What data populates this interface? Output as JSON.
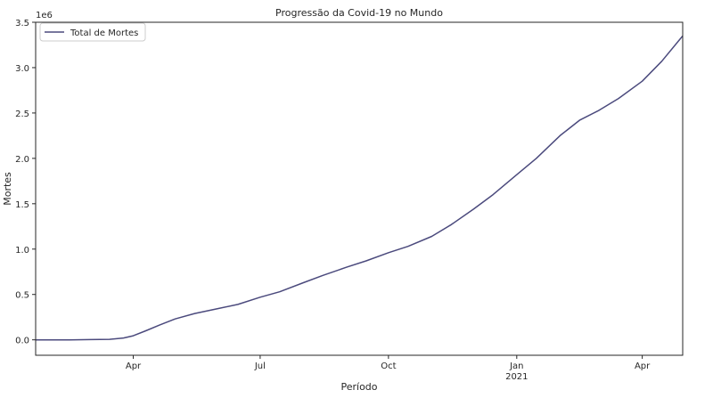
{
  "chart_data": {
    "type": "line",
    "title": "Progressão da Covid-19 no Mundo",
    "xlabel": "Período",
    "ylabel": "Mortes",
    "y_offset_label": "1e6",
    "ylim": [
      -0.17,
      3.5
    ],
    "xlim": [
      "2020-01-22",
      "2021-04-30"
    ],
    "yticks": [
      {
        "value": 0.0,
        "label": "0.0"
      },
      {
        "value": 0.5,
        "label": "0.5"
      },
      {
        "value": 1.0,
        "label": "1.0"
      },
      {
        "value": 1.5,
        "label": "1.5"
      },
      {
        "value": 2.0,
        "label": "2.0"
      },
      {
        "value": 2.5,
        "label": "2.5"
      },
      {
        "value": 3.0,
        "label": "3.0"
      },
      {
        "value": 3.5,
        "label": "3.5"
      }
    ],
    "xticks": [
      {
        "date": "2020-04-01",
        "label": "Apr",
        "sublabel": ""
      },
      {
        "date": "2020-07-01",
        "label": "Jul",
        "sublabel": ""
      },
      {
        "date": "2020-10-01",
        "label": "Oct",
        "sublabel": ""
      },
      {
        "date": "2021-01-01",
        "label": "Jan",
        "sublabel": "2021"
      },
      {
        "date": "2021-04-01",
        "label": "Apr",
        "sublabel": ""
      }
    ],
    "legend_position": "top-left",
    "grid": false,
    "series": [
      {
        "name": "Total de Mortes",
        "color": "#4b4a7d",
        "points": [
          {
            "x": "2020-01-22",
            "y": 0.0
          },
          {
            "x": "2020-02-15",
            "y": 0.0
          },
          {
            "x": "2020-03-01",
            "y": 0.003
          },
          {
            "x": "2020-03-15",
            "y": 0.006
          },
          {
            "x": "2020-03-25",
            "y": 0.02
          },
          {
            "x": "2020-04-01",
            "y": 0.045
          },
          {
            "x": "2020-04-10",
            "y": 0.1
          },
          {
            "x": "2020-04-20",
            "y": 0.165
          },
          {
            "x": "2020-05-01",
            "y": 0.23
          },
          {
            "x": "2020-05-15",
            "y": 0.29
          },
          {
            "x": "2020-06-01",
            "y": 0.345
          },
          {
            "x": "2020-06-15",
            "y": 0.39
          },
          {
            "x": "2020-07-01",
            "y": 0.47
          },
          {
            "x": "2020-07-15",
            "y": 0.53
          },
          {
            "x": "2020-08-01",
            "y": 0.63
          },
          {
            "x": "2020-08-15",
            "y": 0.71
          },
          {
            "x": "2020-09-01",
            "y": 0.8
          },
          {
            "x": "2020-09-15",
            "y": 0.87
          },
          {
            "x": "2020-10-01",
            "y": 0.96
          },
          {
            "x": "2020-10-15",
            "y": 1.03
          },
          {
            "x": "2020-11-01",
            "y": 1.14
          },
          {
            "x": "2020-11-15",
            "y": 1.27
          },
          {
            "x": "2020-12-01",
            "y": 1.44
          },
          {
            "x": "2020-12-15",
            "y": 1.6
          },
          {
            "x": "2021-01-01",
            "y": 1.82
          },
          {
            "x": "2021-01-15",
            "y": 2.0
          },
          {
            "x": "2021-02-01",
            "y": 2.25
          },
          {
            "x": "2021-02-15",
            "y": 2.42
          },
          {
            "x": "2021-03-01",
            "y": 2.53
          },
          {
            "x": "2021-03-15",
            "y": 2.66
          },
          {
            "x": "2021-04-01",
            "y": 2.85
          },
          {
            "x": "2021-04-15",
            "y": 3.07
          },
          {
            "x": "2021-04-30",
            "y": 3.35
          }
        ]
      }
    ]
  }
}
